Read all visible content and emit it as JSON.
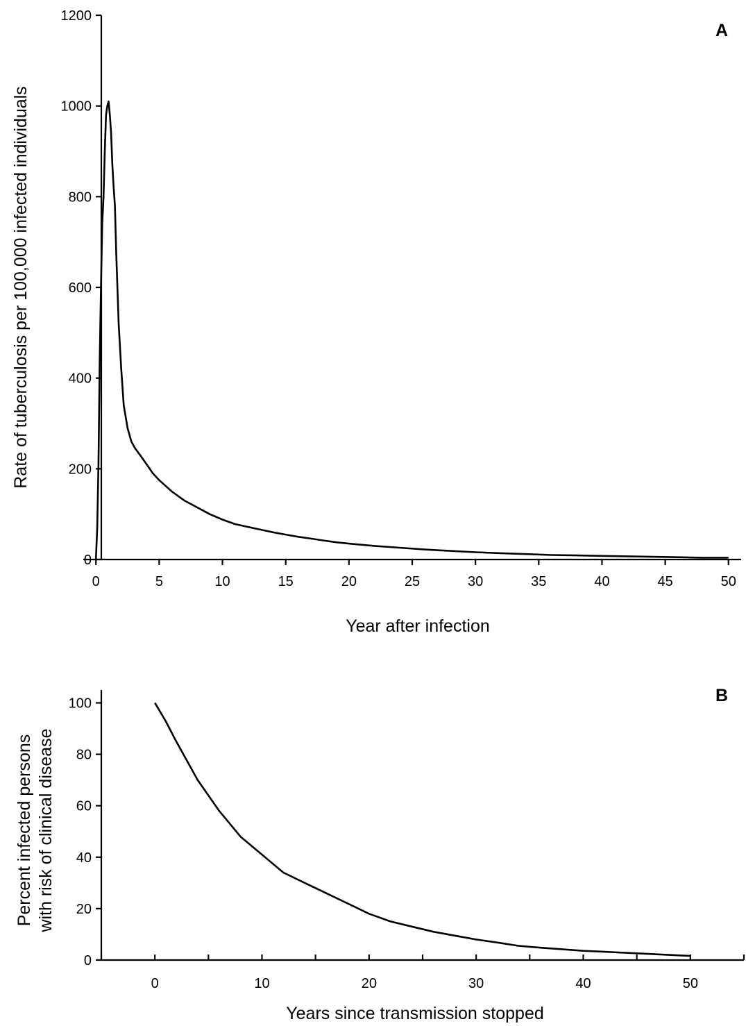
{
  "chart_data": [
    {
      "type": "line",
      "panel_label": "A",
      "xlabel": "Year after infection",
      "ylabel": "Rate of tuberculosis per 100,000 infected individuals",
      "xlim": [
        -1,
        51
      ],
      "ylim": [
        0,
        1200
      ],
      "xticks": [
        0,
        5,
        10,
        15,
        20,
        25,
        30,
        35,
        40,
        45,
        50
      ],
      "yticks": [
        0,
        200,
        400,
        600,
        800,
        1000,
        1200
      ],
      "grid": false,
      "legend": "none",
      "series": [
        {
          "color": "#000000",
          "x": [
            0,
            0.1,
            0.2,
            0.3,
            0.4,
            0.5,
            0.6,
            0.7,
            0.8,
            0.9,
            1.0,
            1.1,
            1.2,
            1.3,
            1.4,
            1.5,
            1.6,
            1.8,
            2.0,
            2.2,
            2.5,
            2.8,
            3.1,
            3.5,
            4,
            4.5,
            5,
            6,
            7,
            8,
            9,
            10,
            11,
            12,
            13,
            14,
            15,
            16,
            17,
            18,
            19,
            20,
            22,
            24,
            26,
            28,
            30,
            32,
            34,
            36,
            38,
            40,
            42,
            44,
            46,
            48,
            50
          ],
          "y": [
            0,
            70,
            210,
            440,
            600,
            740,
            800,
            900,
            980,
            1000,
            1010,
            980,
            940,
            870,
            820,
            780,
            680,
            520,
            420,
            340,
            290,
            260,
            245,
            230,
            210,
            190,
            175,
            150,
            130,
            115,
            100,
            88,
            78,
            72,
            66,
            60,
            55,
            50,
            46,
            42,
            38,
            35,
            30,
            26,
            22,
            19,
            16,
            14,
            12,
            10,
            9,
            8,
            7,
            6,
            5,
            4,
            4
          ]
        }
      ]
    },
    {
      "type": "line",
      "panel_label": "B",
      "xlabel": "Years since transmission stopped",
      "ylabel": [
        "Percent infected persons",
        "with risk of clinical disease"
      ],
      "xlim": [
        -5,
        55
      ],
      "ylim": [
        0,
        105
      ],
      "xticks": [
        0,
        10,
        20,
        30,
        40,
        50
      ],
      "xticks_minor": [
        -5,
        5,
        15,
        25,
        35,
        45,
        55
      ],
      "yticks": [
        0,
        20,
        40,
        60,
        80,
        100
      ],
      "grid": false,
      "legend": "none",
      "series": [
        {
          "color": "#000000",
          "x": [
            0,
            1,
            2,
            4,
            6,
            8,
            10,
            12,
            14,
            16,
            18,
            20,
            22,
            24,
            26,
            28,
            30,
            32,
            34,
            36,
            38,
            40,
            42,
            44,
            46,
            48,
            50
          ],
          "y": [
            100,
            93,
            85,
            70,
            58,
            48,
            41,
            34,
            30,
            26,
            22,
            18,
            15,
            13,
            11,
            9.5,
            8,
            6.8,
            5.5,
            4.8,
            4.2,
            3.6,
            3.2,
            2.8,
            2.4,
            2.0,
            1.6
          ]
        }
      ]
    }
  ]
}
